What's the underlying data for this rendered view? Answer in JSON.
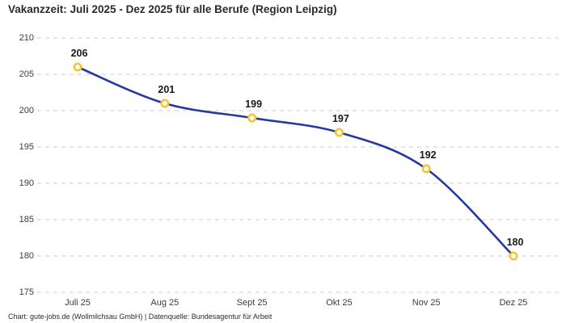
{
  "page": {
    "title": "Vakanzzeit: Juli 2025 - Dez 2025 für alle Berufe (Region Leipzig)",
    "footer": "Chart: gute-jobs.de (Wollmilchsau GmbH) | Datenquelle: Bundesagentur für Arbeit"
  },
  "chart_data": {
    "type": "line",
    "title": "Vakanzzeit: Juli 2025 - Dez 2025 für alle Berufe (Region Leipzig)",
    "categories": [
      "Juli 25",
      "Aug 25",
      "Sept 25",
      "Okt 25",
      "Nov 25",
      "Dez 25"
    ],
    "values": [
      206,
      201,
      199,
      197,
      192,
      180
    ],
    "data_labels": [
      "206",
      "201",
      "199",
      "197",
      "192",
      "180"
    ],
    "ylim": [
      175,
      210
    ],
    "yticks": [
      210,
      205,
      200,
      195,
      190,
      185,
      180,
      175
    ],
    "grid": "horizontal-dashed",
    "legend": "none",
    "line_style": "smooth",
    "colors": {
      "line": "#2438a0",
      "marker_ring": "#f8c332",
      "marker_fill": "#ffffff",
      "gridline": "#cccccc",
      "title_text": "#2b2b2b",
      "axis_text": "#3c3c3c",
      "label_text": "#191919"
    }
  }
}
